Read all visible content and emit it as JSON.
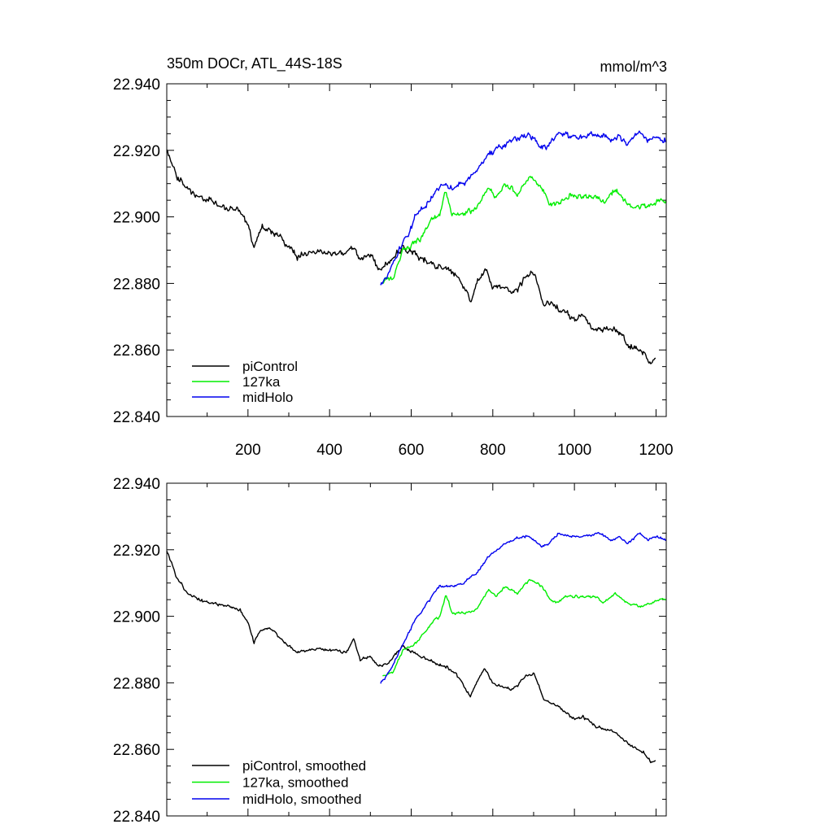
{
  "chart_data": [
    {
      "type": "line",
      "title_left": "350m DOCr, ATL_44S-18S",
      "title_right": "mmol/m^3",
      "xlabel": "",
      "ylabel": "",
      "xlim": [
        1,
        1225
      ],
      "ylim": [
        22.84,
        22.94
      ],
      "xticks": [
        200,
        400,
        600,
        800,
        1000,
        1200
      ],
      "xtick_labels": [
        "200",
        "400",
        "600",
        "800",
        "1000",
        "1200"
      ],
      "yticks": [
        22.84,
        22.86,
        22.88,
        22.9,
        22.92,
        22.94
      ],
      "ytick_labels": [
        "22.840",
        "22.860",
        "22.880",
        "22.900",
        "22.920",
        "22.940"
      ],
      "legend_position": "bottom-left",
      "series": [
        {
          "name": "piControl",
          "color": "#000000",
          "x_start": 1,
          "x_end": 1200,
          "noise": 0.0023,
          "keypoints": [
            [
              1,
              22.92
            ],
            [
              25,
              22.912
            ],
            [
              50,
              22.909
            ],
            [
              80,
              22.905
            ],
            [
              110,
              22.905
            ],
            [
              150,
              22.902
            ],
            [
              180,
              22.902
            ],
            [
              200,
              22.898
            ],
            [
              215,
              22.891
            ],
            [
              230,
              22.897
            ],
            [
              260,
              22.896
            ],
            [
              290,
              22.892
            ],
            [
              320,
              22.888
            ],
            [
              360,
              22.89
            ],
            [
              400,
              22.889
            ],
            [
              440,
              22.889
            ],
            [
              460,
              22.892
            ],
            [
              475,
              22.887
            ],
            [
              500,
              22.889
            ],
            [
              520,
              22.884
            ],
            [
              545,
              22.886
            ],
            [
              580,
              22.891
            ],
            [
              620,
              22.888
            ],
            [
              660,
              22.885
            ],
            [
              700,
              22.884
            ],
            [
              730,
              22.879
            ],
            [
              745,
              22.874
            ],
            [
              760,
              22.88
            ],
            [
              780,
              22.885
            ],
            [
              800,
              22.879
            ],
            [
              820,
              22.879
            ],
            [
              840,
              22.878
            ],
            [
              860,
              22.878
            ],
            [
              880,
              22.882
            ],
            [
              900,
              22.883
            ],
            [
              925,
              22.874
            ],
            [
              960,
              22.873
            ],
            [
              1000,
              22.869
            ],
            [
              1020,
              22.87
            ],
            [
              1050,
              22.866
            ],
            [
              1100,
              22.866
            ],
            [
              1140,
              22.861
            ],
            [
              1170,
              22.859
            ],
            [
              1190,
              22.856
            ],
            [
              1200,
              22.858
            ]
          ]
        },
        {
          "name": "127ka",
          "color": "#00ee00",
          "x_start": 530,
          "x_end": 1225,
          "noise": 0.002,
          "keypoints": [
            [
              530,
              22.881
            ],
            [
              555,
              22.882
            ],
            [
              580,
              22.89
            ],
            [
              600,
              22.891
            ],
            [
              620,
              22.893
            ],
            [
              650,
              22.899
            ],
            [
              670,
              22.901
            ],
            [
              685,
              22.908
            ],
            [
              700,
              22.901
            ],
            [
              730,
              22.901
            ],
            [
              760,
              22.902
            ],
            [
              790,
              22.909
            ],
            [
              810,
              22.906
            ],
            [
              830,
              22.91
            ],
            [
              860,
              22.907
            ],
            [
              890,
              22.912
            ],
            [
              920,
              22.909
            ],
            [
              940,
              22.904
            ],
            [
              960,
              22.904
            ],
            [
              980,
              22.906
            ],
            [
              1000,
              22.906
            ],
            [
              1050,
              22.906
            ],
            [
              1070,
              22.904
            ],
            [
              1100,
              22.908
            ],
            [
              1130,
              22.904
            ],
            [
              1160,
              22.903
            ],
            [
              1190,
              22.904
            ],
            [
              1210,
              22.905
            ],
            [
              1225,
              22.905
            ]
          ]
        },
        {
          "name": "midHolo",
          "color": "#0000ee",
          "x_start": 525,
          "x_end": 1225,
          "noise": 0.0021,
          "keypoints": [
            [
              525,
              22.879
            ],
            [
              545,
              22.883
            ],
            [
              570,
              22.89
            ],
            [
              590,
              22.894
            ],
            [
              610,
              22.9
            ],
            [
              640,
              22.904
            ],
            [
              670,
              22.909
            ],
            [
              700,
              22.909
            ],
            [
              730,
              22.91
            ],
            [
              760,
              22.914
            ],
            [
              790,
              22.919
            ],
            [
              820,
              22.921
            ],
            [
              850,
              22.923
            ],
            [
              870,
              22.924
            ],
            [
              890,
              22.925
            ],
            [
              920,
              22.921
            ],
            [
              940,
              22.922
            ],
            [
              960,
              22.925
            ],
            [
              990,
              22.924
            ],
            [
              1020,
              22.924
            ],
            [
              1060,
              22.925
            ],
            [
              1090,
              22.923
            ],
            [
              1110,
              22.924
            ],
            [
              1130,
              22.922
            ],
            [
              1160,
              22.926
            ],
            [
              1180,
              22.923
            ],
            [
              1200,
              22.924
            ],
            [
              1225,
              22.923
            ]
          ]
        }
      ]
    },
    {
      "type": "line",
      "xlim": [
        1,
        1225
      ],
      "ylim": [
        22.84,
        22.94
      ],
      "yticks": [
        22.84,
        22.86,
        22.88,
        22.9,
        22.92,
        22.94
      ],
      "ytick_labels": [
        "22.840",
        "22.860",
        "22.880",
        "22.900",
        "22.920",
        "22.940"
      ],
      "legend_position": "bottom-left",
      "series": [
        {
          "name": "piControl, smoothed",
          "color": "#000000",
          "x_start": 1,
          "x_end": 1200,
          "noise": 0.001,
          "keypoints": [
            [
              1,
              22.92
            ],
            [
              25,
              22.912
            ],
            [
              50,
              22.907
            ],
            [
              80,
              22.905
            ],
            [
              110,
              22.904
            ],
            [
              150,
              22.903
            ],
            [
              180,
              22.902
            ],
            [
              200,
              22.898
            ],
            [
              215,
              22.892
            ],
            [
              230,
              22.896
            ],
            [
              260,
              22.896
            ],
            [
              290,
              22.892
            ],
            [
              320,
              22.889
            ],
            [
              360,
              22.89
            ],
            [
              400,
              22.89
            ],
            [
              440,
              22.889
            ],
            [
              460,
              22.893
            ],
            [
              475,
              22.887
            ],
            [
              500,
              22.888
            ],
            [
              520,
              22.885
            ],
            [
              545,
              22.886
            ],
            [
              580,
              22.891
            ],
            [
              620,
              22.888
            ],
            [
              660,
              22.886
            ],
            [
              700,
              22.884
            ],
            [
              730,
              22.879
            ],
            [
              745,
              22.876
            ],
            [
              760,
              22.88
            ],
            [
              780,
              22.884
            ],
            [
              800,
              22.88
            ],
            [
              820,
              22.879
            ],
            [
              840,
              22.878
            ],
            [
              860,
              22.879
            ],
            [
              880,
              22.882
            ],
            [
              900,
              22.883
            ],
            [
              925,
              22.875
            ],
            [
              960,
              22.873
            ],
            [
              1000,
              22.869
            ],
            [
              1020,
              22.87
            ],
            [
              1050,
              22.867
            ],
            [
              1100,
              22.865
            ],
            [
              1140,
              22.861
            ],
            [
              1170,
              22.859
            ],
            [
              1190,
              22.856
            ],
            [
              1200,
              22.857
            ]
          ]
        },
        {
          "name": "127ka, smoothed",
          "color": "#00ee00",
          "x_start": 530,
          "x_end": 1225,
          "noise": 0.0009,
          "keypoints": [
            [
              530,
              22.882
            ],
            [
              555,
              22.883
            ],
            [
              580,
              22.89
            ],
            [
              600,
              22.891
            ],
            [
              620,
              22.893
            ],
            [
              650,
              22.898
            ],
            [
              670,
              22.9
            ],
            [
              685,
              22.907
            ],
            [
              700,
              22.901
            ],
            [
              730,
              22.901
            ],
            [
              760,
              22.902
            ],
            [
              790,
              22.908
            ],
            [
              810,
              22.906
            ],
            [
              830,
              22.909
            ],
            [
              860,
              22.907
            ],
            [
              890,
              22.911
            ],
            [
              920,
              22.909
            ],
            [
              940,
              22.905
            ],
            [
              960,
              22.904
            ],
            [
              980,
              22.906
            ],
            [
              1000,
              22.906
            ],
            [
              1050,
              22.906
            ],
            [
              1070,
              22.904
            ],
            [
              1100,
              22.907
            ],
            [
              1130,
              22.904
            ],
            [
              1160,
              22.903
            ],
            [
              1190,
              22.904
            ],
            [
              1210,
              22.905
            ],
            [
              1225,
              22.905
            ]
          ]
        },
        {
          "name": "midHolo, smoothed",
          "color": "#0000ee",
          "x_start": 525,
          "x_end": 1225,
          "noise": 0.0009,
          "keypoints": [
            [
              525,
              22.88
            ],
            [
              545,
              22.883
            ],
            [
              570,
              22.889
            ],
            [
              590,
              22.894
            ],
            [
              610,
              22.899
            ],
            [
              640,
              22.904
            ],
            [
              670,
              22.909
            ],
            [
              700,
              22.909
            ],
            [
              730,
              22.91
            ],
            [
              760,
              22.913
            ],
            [
              790,
              22.918
            ],
            [
              820,
              22.921
            ],
            [
              850,
              22.923
            ],
            [
              870,
              22.924
            ],
            [
              890,
              22.924
            ],
            [
              920,
              22.921
            ],
            [
              940,
              22.922
            ],
            [
              960,
              22.925
            ],
            [
              990,
              22.924
            ],
            [
              1020,
              22.924
            ],
            [
              1060,
              22.925
            ],
            [
              1090,
              22.923
            ],
            [
              1110,
              22.924
            ],
            [
              1130,
              22.922
            ],
            [
              1160,
              22.925
            ],
            [
              1180,
              22.923
            ],
            [
              1200,
              22.924
            ],
            [
              1225,
              22.923
            ]
          ]
        }
      ]
    }
  ]
}
